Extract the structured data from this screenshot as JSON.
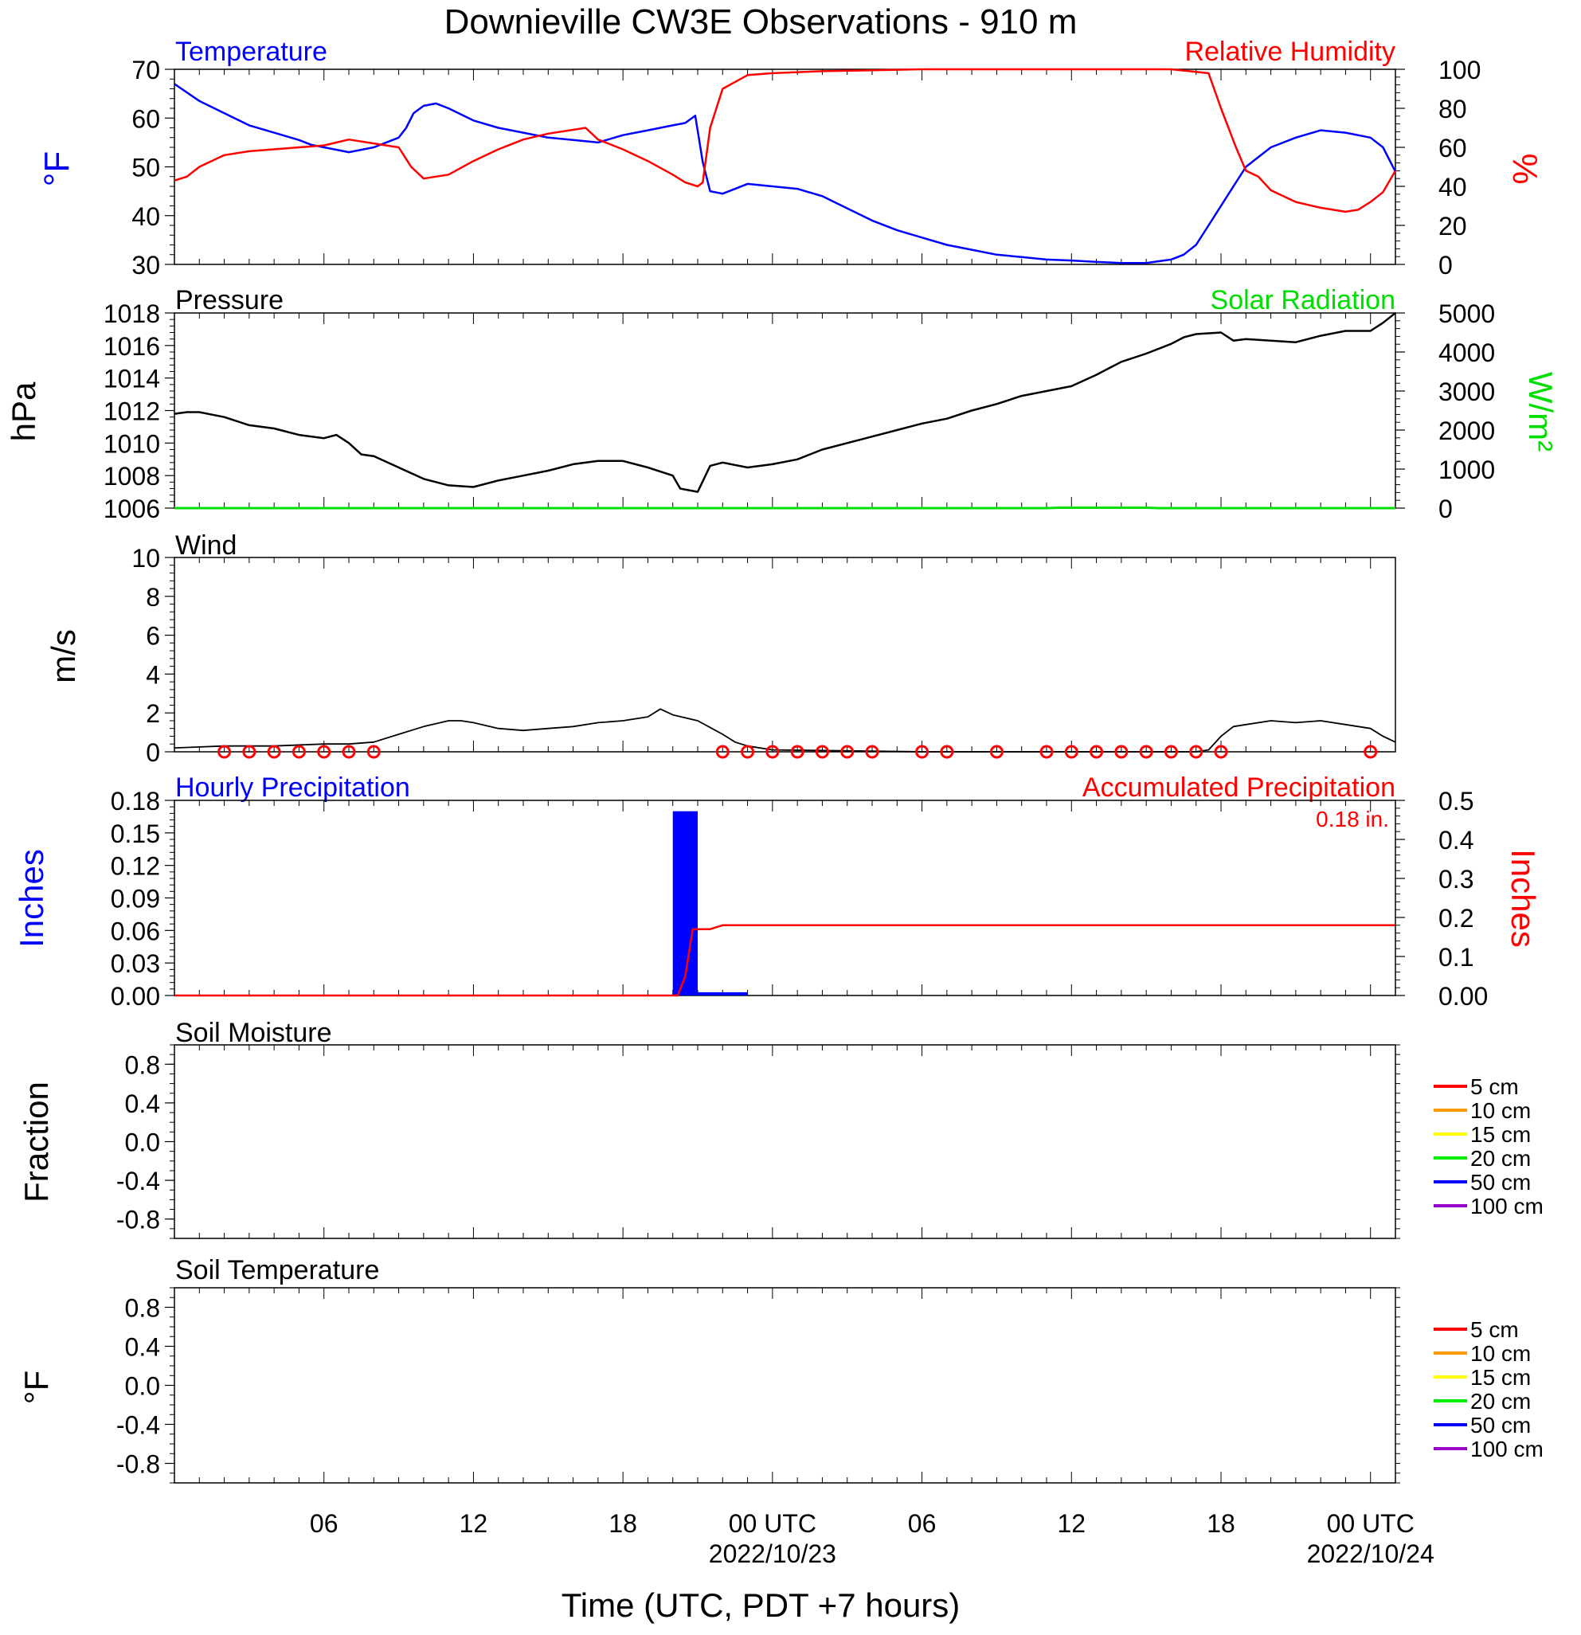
{
  "title": "Downieville CW3E Observations - 910 m",
  "xlabel": "Time (UTC, PDT +7 hours)",
  "x_ticks": [
    {
      "hour": 6,
      "label": "06",
      "date": ""
    },
    {
      "hour": 12,
      "label": "12",
      "date": ""
    },
    {
      "hour": 18,
      "label": "18",
      "date": ""
    },
    {
      "hour": 24,
      "label": "00 UTC",
      "date": "2022/10/23"
    },
    {
      "hour": 30,
      "label": "06",
      "date": ""
    },
    {
      "hour": 36,
      "label": "12",
      "date": ""
    },
    {
      "hour": 42,
      "label": "18",
      "date": ""
    },
    {
      "hour": 48,
      "label": "00 UTC",
      "date": "2022/10/24"
    }
  ],
  "colors": {
    "temperature": "#0000ff",
    "humidity": "#ff0000",
    "pressure": "#000000",
    "solar": "#00dd00",
    "wind": "#000000",
    "barb": "#ff0000",
    "hourly_precip": "#0000ff",
    "accum_precip": "#ff0000"
  },
  "panels": {
    "temp_rh": {
      "left_title": "Temperature",
      "right_title": "Relative Humidity",
      "left_unit": "°F",
      "right_unit": "%",
      "left_ticks": [
        "30",
        "40",
        "50",
        "60",
        "70"
      ],
      "right_ticks": [
        "0",
        "20",
        "40",
        "60",
        "80",
        "100"
      ]
    },
    "pressure": {
      "left_title": "Pressure",
      "right_title": "Solar Radiation",
      "left_unit": "hPa",
      "right_unit": "W/m²",
      "left_ticks": [
        "1006",
        "1008",
        "1010",
        "1012",
        "1014",
        "1016",
        "1018"
      ],
      "right_ticks": [
        "0",
        "1000",
        "2000",
        "3000",
        "4000",
        "5000"
      ]
    },
    "wind": {
      "left_title": "Wind",
      "left_unit": "m/s",
      "left_ticks": [
        "0",
        "2",
        "4",
        "6",
        "8",
        "10"
      ]
    },
    "precip": {
      "left_title": "Hourly Precipitation",
      "right_title": "Accumulated Precipitation",
      "total_label": "0.18 in.",
      "left_unit": "Inches",
      "right_unit": "Inches",
      "left_ticks": [
        "0.00",
        "0.03",
        "0.06",
        "0.09",
        "0.12",
        "0.15",
        "0.18"
      ],
      "right_ticks": [
        "0.00",
        "0.1",
        "0.2",
        "0.3",
        "0.4",
        "0.5"
      ]
    },
    "soil_moisture": {
      "left_title": "Soil Moisture",
      "left_unit": "Fraction",
      "left_ticks": [
        "-0.8",
        "-0.4",
        "0.0",
        "0.4",
        "0.8"
      ],
      "legend": [
        {
          "label": "5 cm",
          "color": "#ff0000"
        },
        {
          "label": "10 cm",
          "color": "#ff9900"
        },
        {
          "label": "15 cm",
          "color": "#ffff00"
        },
        {
          "label": "20 cm",
          "color": "#00ee00"
        },
        {
          "label": "50 cm",
          "color": "#0000ff"
        },
        {
          "label": "100 cm",
          "color": "#9900cc"
        }
      ]
    },
    "soil_temperature": {
      "left_title": "Soil Temperature",
      "left_unit": "°F",
      "left_ticks": [
        "-0.8",
        "-0.4",
        "0.0",
        "0.4",
        "0.8"
      ],
      "legend": [
        {
          "label": "5 cm",
          "color": "#ff0000"
        },
        {
          "label": "10 cm",
          "color": "#ff9900"
        },
        {
          "label": "15 cm",
          "color": "#ffff00"
        },
        {
          "label": "20 cm",
          "color": "#00ee00"
        },
        {
          "label": "50 cm",
          "color": "#0000ff"
        },
        {
          "label": "100 cm",
          "color": "#9900cc"
        }
      ]
    }
  },
  "chart_data": {
    "type": "line",
    "x_unit": "hours since 2022/10/22 00 UTC",
    "xlim": [
      0,
      49
    ],
    "temperature": {
      "name": "Temperature",
      "ylim": [
        30,
        70
      ],
      "x": [
        0,
        1,
        2,
        3,
        4,
        5,
        5.5,
        7,
        8,
        8.5,
        9,
        9.3,
        9.6,
        10,
        10.5,
        11,
        12,
        13,
        14,
        15,
        16,
        17,
        18,
        19,
        20,
        20.5,
        20.9,
        21.2,
        21.5,
        22,
        23,
        24,
        25,
        26,
        27,
        28,
        29,
        30,
        31,
        32,
        33,
        34,
        35,
        36,
        37,
        38,
        39,
        40,
        40.5,
        41,
        41.5,
        42,
        42.5,
        43,
        44,
        45,
        46,
        47,
        48,
        48.5,
        49
      ],
      "y": [
        67,
        63.5,
        61,
        58.5,
        57,
        55.5,
        54.5,
        53,
        54,
        55,
        56,
        58,
        61,
        62.5,
        63,
        62,
        59.5,
        58,
        57,
        56,
        55.5,
        55,
        56.5,
        57.5,
        58.5,
        59,
        60.5,
        51,
        45,
        44.5,
        46.5,
        46,
        45.5,
        44,
        41.5,
        39,
        37,
        35.5,
        34,
        33,
        32,
        31.5,
        31,
        30.8,
        30.5,
        30.3,
        30.3,
        31,
        32,
        34,
        38,
        42,
        46,
        50,
        54,
        56,
        57.5,
        57,
        56,
        54,
        49
      ]
    },
    "relative_humidity": {
      "name": "Relative Humidity",
      "ylim": [
        0,
        100
      ],
      "x": [
        0,
        0.5,
        1,
        2,
        3,
        4,
        5,
        6,
        7,
        8,
        8.5,
        9,
        9.5,
        10,
        11,
        12,
        13,
        14,
        15,
        16,
        16.5,
        17,
        18,
        19,
        20,
        20.5,
        21,
        21.2,
        21.5,
        22,
        23,
        24,
        26,
        28,
        30,
        35,
        40,
        41.5,
        42,
        42.3,
        42.6,
        43,
        43.5,
        44,
        45,
        46,
        47,
        47.5,
        48,
        48.5,
        49
      ],
      "y": [
        43,
        45,
        50,
        56,
        58,
        59,
        60,
        61,
        64,
        62,
        61,
        60,
        50,
        44,
        46,
        53,
        59,
        64,
        67,
        69,
        70,
        64,
        59,
        53,
        46,
        42,
        40,
        42,
        70,
        90,
        97,
        98,
        99,
        99.5,
        100,
        100,
        100,
        98,
        80,
        70,
        60,
        48,
        45,
        38,
        32,
        29,
        27,
        28,
        32,
        37,
        48
      ]
    },
    "pressure": {
      "name": "Pressure",
      "ylim": [
        1006,
        1018
      ],
      "x": [
        0,
        0.5,
        1,
        2,
        3,
        4,
        5,
        6,
        6.5,
        7,
        7.5,
        8,
        9,
        10,
        11,
        12,
        13,
        14,
        15,
        16,
        17,
        18,
        19,
        20,
        20.3,
        21,
        21.5,
        22,
        23,
        24,
        25,
        26,
        27,
        28,
        29,
        30,
        31,
        32,
        33,
        34,
        35,
        36,
        37,
        38,
        39,
        40,
        40.5,
        41,
        42,
        42.5,
        43,
        44,
        45,
        46,
        47,
        48,
        48.5,
        49
      ],
      "y": [
        1011.8,
        1011.9,
        1011.9,
        1011.6,
        1011.1,
        1010.9,
        1010.5,
        1010.3,
        1010.5,
        1010.0,
        1009.3,
        1009.2,
        1008.5,
        1007.8,
        1007.4,
        1007.3,
        1007.7,
        1008.0,
        1008.3,
        1008.7,
        1008.9,
        1008.9,
        1008.5,
        1008.0,
        1007.2,
        1007.0,
        1008.6,
        1008.8,
        1008.5,
        1008.7,
        1009.0,
        1009.6,
        1010.0,
        1010.4,
        1010.8,
        1011.2,
        1011.5,
        1012.0,
        1012.4,
        1012.9,
        1013.2,
        1013.5,
        1014.2,
        1015.0,
        1015.5,
        1016.1,
        1016.5,
        1016.7,
        1016.8,
        1016.3,
        1016.4,
        1016.3,
        1016.2,
        1016.6,
        1016.9,
        1016.9,
        1017.4,
        1018.0
      ]
    },
    "solar_radiation": {
      "name": "Solar Radiation",
      "ylim": [
        0,
        5000
      ],
      "x": [
        0,
        35,
        35.5,
        39,
        39.5,
        49
      ],
      "y": [
        0,
        0,
        10,
        10,
        0,
        0
      ]
    },
    "wind_speed": {
      "name": "Wind",
      "ylim": [
        0,
        10
      ],
      "x": [
        0,
        2,
        4,
        6,
        7,
        8,
        9,
        9.5,
        10,
        11,
        11.5,
        12,
        13,
        14,
        15,
        16,
        17,
        18,
        19,
        19.5,
        20,
        21,
        22,
        22.5,
        23,
        24,
        30,
        35,
        40,
        41,
        41.5,
        42,
        42.5,
        43,
        44,
        45,
        46,
        47,
        48,
        48.5,
        49
      ],
      "y": [
        0.2,
        0.3,
        0.3,
        0.4,
        0.4,
        0.5,
        0.9,
        1.1,
        1.3,
        1.6,
        1.6,
        1.5,
        1.2,
        1.1,
        1.2,
        1.3,
        1.5,
        1.6,
        1.8,
        2.2,
        1.9,
        1.6,
        0.9,
        0.5,
        0.3,
        0.1,
        0,
        0,
        0,
        0,
        0.1,
        0.8,
        1.3,
        1.4,
        1.6,
        1.5,
        1.6,
        1.4,
        1.2,
        0.8,
        0.5
      ]
    },
    "calm_markers_hour": [
      2,
      3,
      4,
      5,
      6,
      7,
      8,
      22,
      23,
      24,
      25,
      26,
      27,
      28,
      30,
      31,
      33,
      35,
      36,
      37,
      38,
      39,
      40,
      41,
      42,
      48
    ],
    "hourly_precipitation": {
      "name": "Hourly Precipitation",
      "ylim": [
        0,
        0.18
      ],
      "bars": [
        {
          "start_hour": 20,
          "end_hour": 21,
          "value": 0.17
        },
        {
          "start_hour": 21,
          "end_hour": 23,
          "value": 0.003
        }
      ]
    },
    "accumulated_precipitation": {
      "name": "Accumulated Precipitation",
      "ylim": [
        0,
        0.5
      ],
      "x": [
        0,
        20.2,
        20.5,
        20.8,
        21.5,
        22,
        49
      ],
      "y": [
        0,
        0,
        0.05,
        0.17,
        0.17,
        0.18,
        0.18
      ]
    },
    "soil_moisture": {
      "ylim": [
        -1,
        1
      ],
      "series": []
    },
    "soil_temperature": {
      "ylim": [
        -1,
        1
      ],
      "series": []
    }
  }
}
